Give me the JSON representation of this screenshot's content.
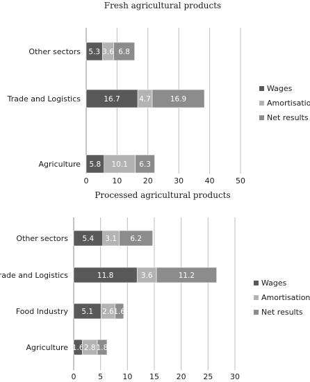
{
  "chart_data": [
    {
      "type": "bar",
      "orientation": "horizontal",
      "stacked": true,
      "title": "Fresh agricultural products",
      "categories": [
        "Agriculture",
        "Trade and Logistics",
        "Other sectors"
      ],
      "series": [
        {
          "name": "Wages",
          "values": [
            5.8,
            16.7,
            5.3
          ],
          "labels": [
            "5.8",
            "16.7",
            "5.3"
          ],
          "color": "#595959"
        },
        {
          "name": "Amortisation",
          "values": [
            10.1,
            4.7,
            3.6
          ],
          "labels": [
            "10.1",
            "4.7",
            "3.6"
          ],
          "color": "#b3b3b3"
        },
        {
          "name": "Net results",
          "values": [
            6.3,
            16.9,
            6.8
          ],
          "labels": [
            "6.3",
            "16.9",
            "6.8"
          ],
          "color": "#8c8c8c"
        }
      ],
      "xlim": [
        0,
        50
      ],
      "xticks": [
        "0",
        "10",
        "20",
        "30",
        "40",
        "50"
      ],
      "grid": true,
      "legend_position": "right"
    },
    {
      "type": "bar",
      "orientation": "horizontal",
      "stacked": true,
      "title": "Processed agricultural products",
      "categories": [
        "Agriculture",
        "Food Industry",
        "Trade and Logistics",
        "Other sectors"
      ],
      "series": [
        {
          "name": "Wages",
          "values": [
            1.6,
            5.1,
            11.8,
            5.4
          ],
          "labels": [
            "1.6",
            "5.1",
            "11.8",
            "5.4"
          ],
          "color": "#595959"
        },
        {
          "name": "Amortisation",
          "values": [
            2.8,
            2.6,
            3.6,
            3.1
          ],
          "labels": [
            "2.8",
            "2.6",
            "3.6",
            "3.1"
          ],
          "color": "#b3b3b3"
        },
        {
          "name": "Net results",
          "values": [
            1.8,
            1.6,
            11.2,
            6.2
          ],
          "labels": [
            "1.8",
            "1.6",
            "11.2",
            "6.2"
          ],
          "color": "#8c8c8c"
        }
      ],
      "xlim": [
        0,
        30
      ],
      "xticks": [
        "0",
        "5",
        "10",
        "15",
        "20",
        "25",
        "30"
      ],
      "grid": true,
      "legend_position": "right"
    }
  ]
}
